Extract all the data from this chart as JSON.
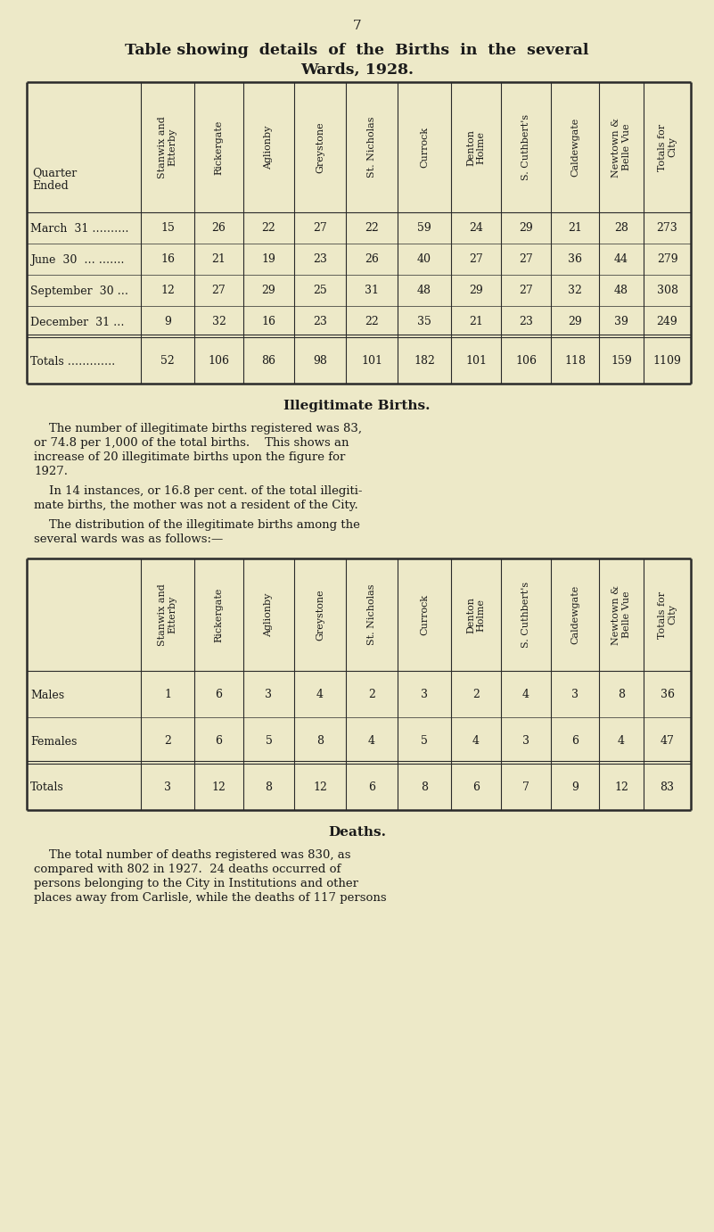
{
  "page_number": "7",
  "bg_color": "#ede9c8",
  "title_line1": "Table showing  details  of  the  Births  in  the  several",
  "title_line2": "Wards, 1928.",
  "col_headers_rotated": [
    "Stanwix and\nEtterby",
    "Rickergate",
    "Aglionby",
    "Greystone",
    "St. Nicholas",
    "Currock",
    "Denton\nHolme",
    "S. Cuthbert's",
    "Caldewgate",
    "Newtown &\nBelle Vue",
    "Totals for\nCity"
  ],
  "table1_rows": [
    [
      "March  31 ……….",
      "15",
      "26",
      "22",
      "27",
      "22",
      "59",
      "24",
      "29",
      "21",
      "28",
      "273"
    ],
    [
      "June  30  … …….",
      "16",
      "21",
      "19",
      "23",
      "26",
      "40",
      "27",
      "27",
      "36",
      "44",
      "279"
    ],
    [
      "September  30 …",
      "12",
      "27",
      "29",
      "25",
      "31",
      "48",
      "29",
      "27",
      "32",
      "48",
      "308"
    ],
    [
      "December  31 …",
      "9",
      "32",
      "16",
      "23",
      "22",
      "35",
      "21",
      "23",
      "29",
      "39",
      "249"
    ]
  ],
  "table1_totals": [
    "Totals ………….",
    "52",
    "106",
    "86",
    "98",
    "101",
    "182",
    "101",
    "106",
    "118",
    "159",
    "1109"
  ],
  "section2_title": "Illegitimate Births.",
  "table2_rows": [
    [
      "Males",
      "1",
      "6",
      "3",
      "4",
      "2",
      "3",
      "2",
      "4",
      "3",
      "8",
      "36"
    ],
    [
      "Females",
      "2",
      "6",
      "5",
      "8",
      "4",
      "5",
      "4",
      "3",
      "6",
      "4",
      "47"
    ]
  ],
  "table2_totals": [
    "Totals",
    "3",
    "12",
    "8",
    "12",
    "6",
    "8",
    "6",
    "7",
    "9",
    "12",
    "83"
  ],
  "section3_title": "Deaths."
}
